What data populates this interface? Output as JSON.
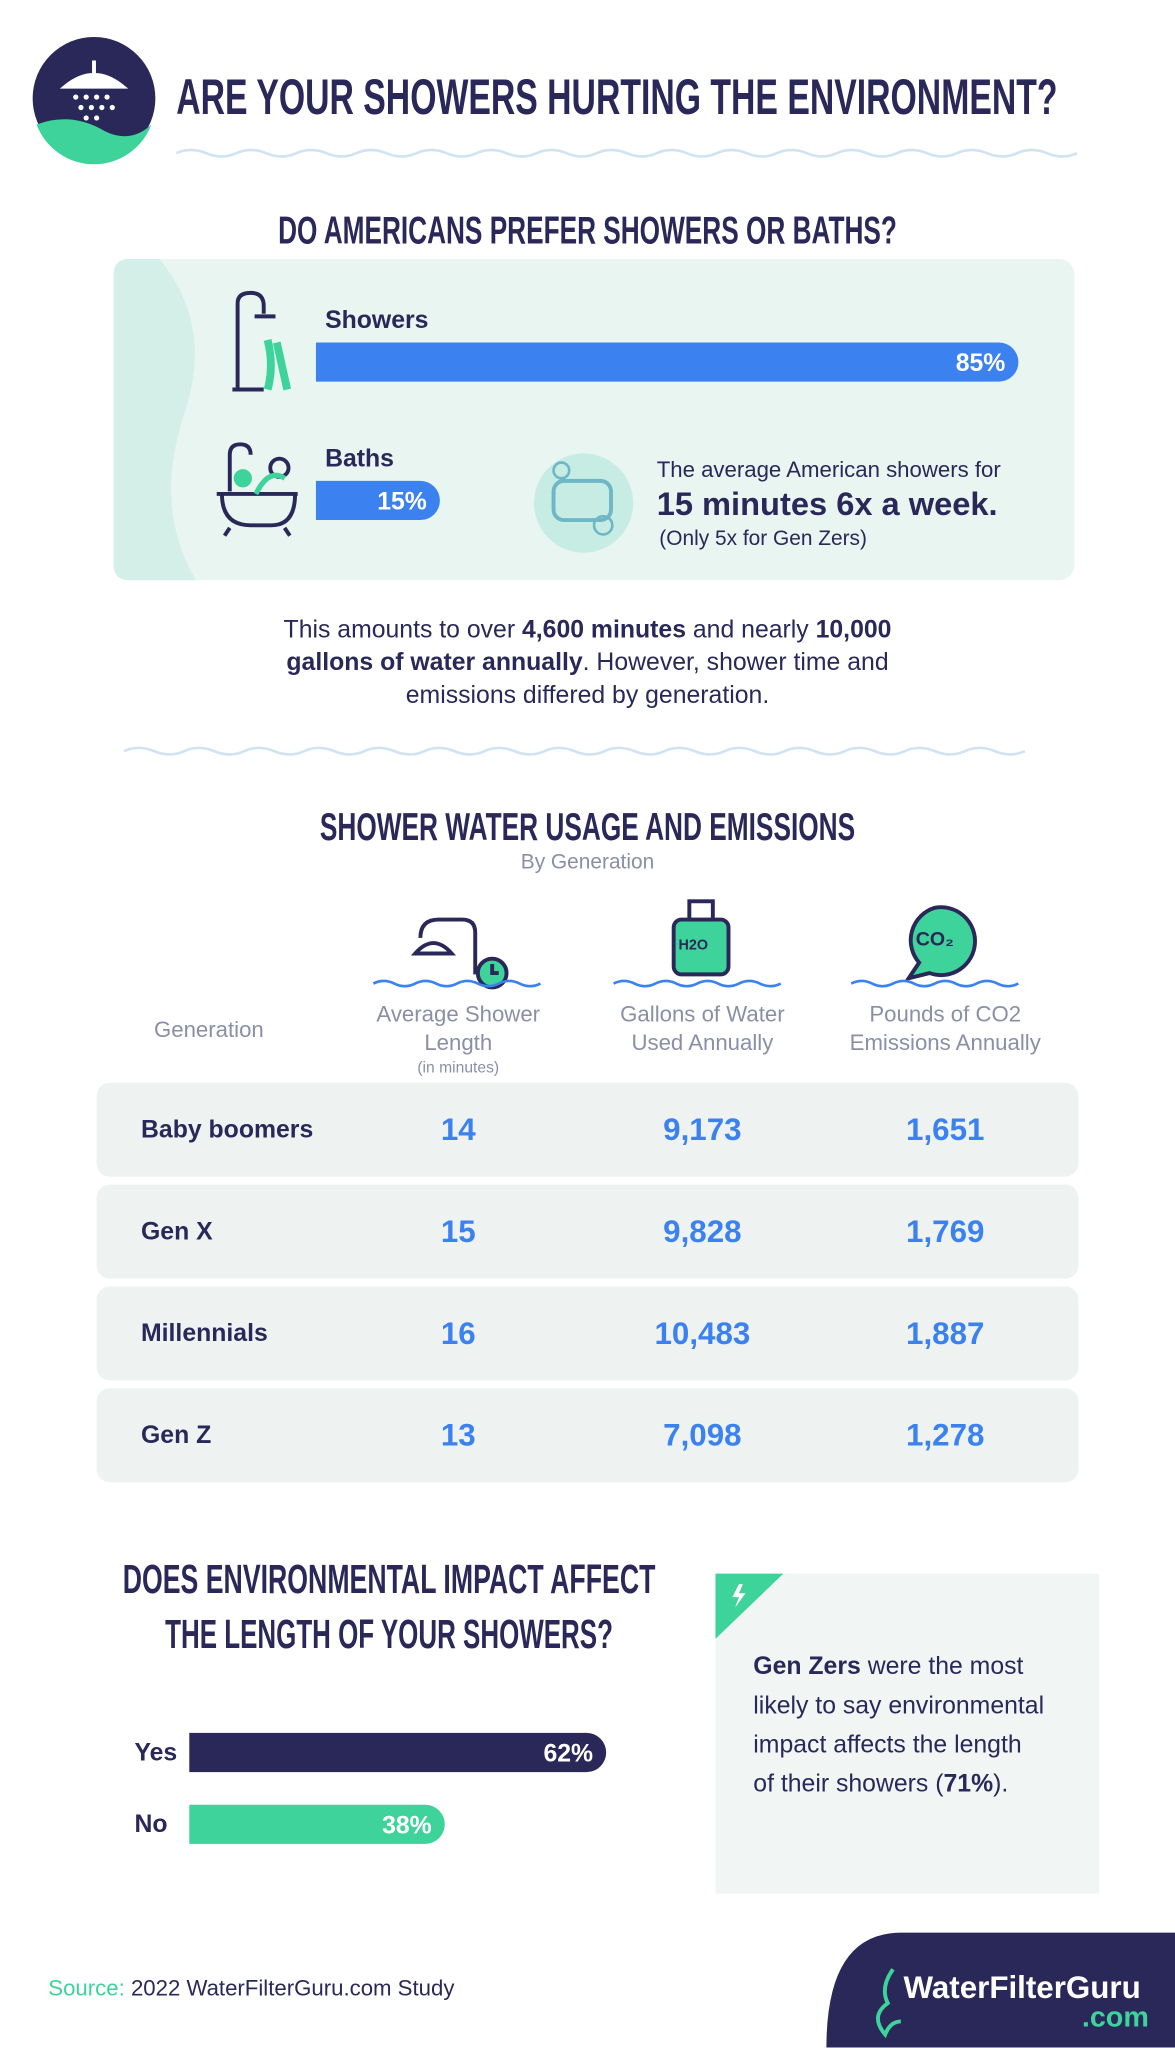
{
  "header": {
    "title": "ARE YOUR SHOWERS HURTING THE ENVIRONMENT?"
  },
  "chart_data": [
    {
      "type": "bar",
      "orientation": "horizontal",
      "title": "DO AMERICANS PREFER SHOWERS OR BATHS?",
      "categories": [
        "Showers",
        "Baths"
      ],
      "values": [
        85,
        15
      ],
      "value_labels": [
        "85%",
        "15%"
      ],
      "xlim": [
        0,
        100
      ],
      "colors": [
        "#3b82f0",
        "#3b82f0"
      ]
    },
    {
      "type": "bar",
      "orientation": "horizontal",
      "title": [
        "DOES ENVIRONMENTAL IMPACT AFFECT",
        "THE LENGTH OF YOUR SHOWERS?"
      ],
      "categories": [
        "Yes",
        "No"
      ],
      "values": [
        62,
        38
      ],
      "value_labels": [
        "62%",
        "38%"
      ],
      "xlim": [
        0,
        100
      ],
      "colors": [
        "#2a2859",
        "#3dd39b"
      ]
    }
  ],
  "fact": {
    "intro": "The average American showers for",
    "highlight": "15 minutes 6x a week.",
    "note": "(Only 5x for Gen Zers)"
  },
  "summary": {
    "parts": [
      "This amounts to over",
      "4,600 minutes",
      "and nearly",
      "10,000",
      "gallons of water annually",
      ". However, shower time and",
      "emissions differed by generation."
    ]
  },
  "table": {
    "title": "SHOWER WATER USAGE AND EMISSIONS",
    "subtitle": "By Generation",
    "columns": [
      [
        "Generation"
      ],
      [
        "Average Shower",
        "Length"
      ],
      [
        "Gallons of Water",
        "Used Annually"
      ],
      [
        "Pounds of CO2",
        "Emissions Annually"
      ]
    ],
    "unit_note": "(in minutes)",
    "rows": [
      [
        "Baby boomers",
        "14",
        "9,173",
        "1,651"
      ],
      [
        "Gen X",
        "15",
        "9,828",
        "1,769"
      ],
      [
        "Millennials",
        "16",
        "10,483",
        "1,887"
      ],
      [
        "Gen Z",
        "13",
        "7,098",
        "1,278"
      ]
    ]
  },
  "icons": {
    "bottle": "H2O",
    "bubble": "CO₂"
  },
  "callout": {
    "parts": [
      "Gen Zers",
      "were the most",
      "likely to say environmental",
      "impact affects the length",
      "of their showers (",
      "71%",
      ")."
    ]
  },
  "footer": {
    "source_label": "Source:",
    "source": "2022 WaterFilterGuru.com Study",
    "logo": "WaterFilterGuru",
    "logo_suffix": ".com"
  }
}
